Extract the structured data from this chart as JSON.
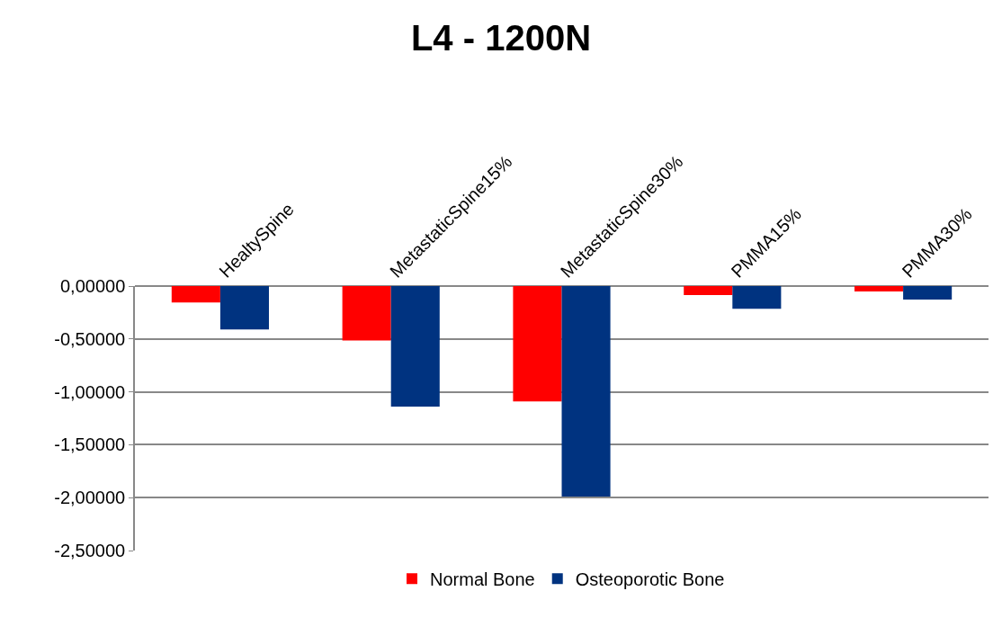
{
  "chart_data": {
    "type": "bar",
    "title": "L4 - 1200N",
    "categories": [
      "HealtySpine",
      "MetastaticSpine15%",
      "MetastaticSpine30%",
      "PMMA15%",
      "PMMA30%"
    ],
    "series": [
      {
        "name": "Normal Bone",
        "color": "#ff0000",
        "values": [
          -0.155,
          -0.515,
          -1.09,
          -0.085,
          -0.05
        ]
      },
      {
        "name": "Osteoporotic Bone",
        "color": "#003380",
        "values": [
          -0.41,
          -1.14,
          -1.99,
          -0.215,
          -0.127
        ]
      }
    ],
    "ylim": [
      -2.5,
      0
    ],
    "yticks": [
      {
        "value": 0,
        "label": "0,00000"
      },
      {
        "value": -0.5,
        "label": "-0,50000"
      },
      {
        "value": -1,
        "label": "-1,00000"
      },
      {
        "value": -1.5,
        "label": "-1,50000"
      },
      {
        "value": -2,
        "label": "-2,00000"
      },
      {
        "value": -2.5,
        "label": "-2,50000"
      }
    ],
    "grid": "y",
    "legend": "bottom"
  }
}
